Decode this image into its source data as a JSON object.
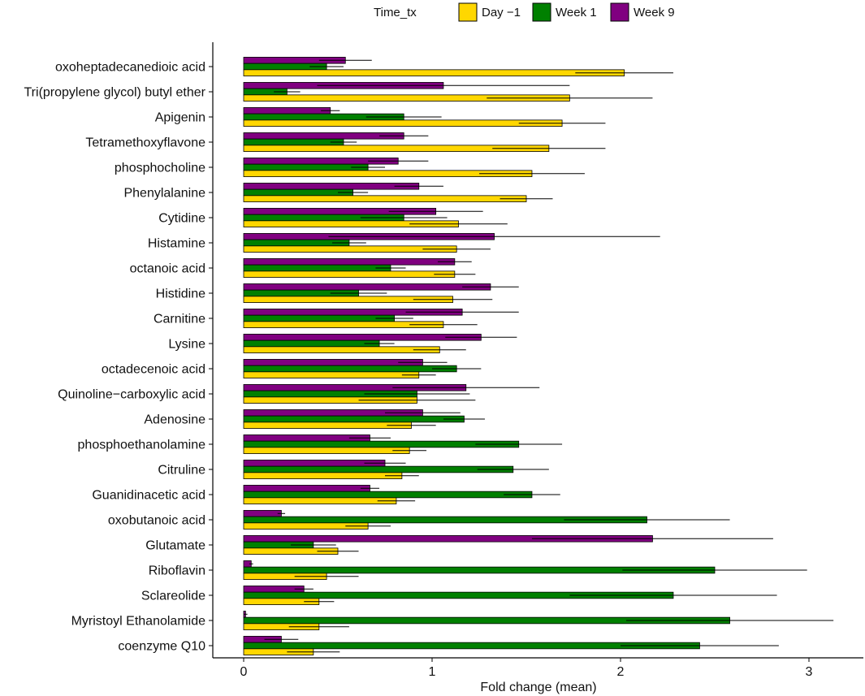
{
  "chart_data": {
    "type": "bar",
    "orientation": "horizontal",
    "title": "",
    "xlabel": "Fold change (mean)",
    "ylabel": "",
    "xlim": [
      -0.12,
      3.28
    ],
    "xticks": [
      0,
      1,
      2,
      3
    ],
    "grid": false,
    "legend": {
      "title": "Time_tx",
      "position": "top",
      "entries": [
        "Day −1",
        "Week 1",
        "Week 9"
      ]
    },
    "colors": {
      "Day −1": "#ffd700",
      "Week 1": "#008000",
      "Week 9": "#800080"
    },
    "categories": [
      "oxoheptadecanedioic acid",
      "Tri(propylene glycol) butyl ether",
      "Apigenin",
      "Tetramethoxyflavone",
      "phosphocholine",
      "Phenylalanine",
      "Cytidine",
      "Histamine",
      "octanoic acid",
      "Histidine",
      "Carnitine",
      "Lysine",
      "octadecenoic acid",
      "Quinoline−carboxylic acid",
      "Adenosine",
      "phosphoethanolamine",
      "Citruline",
      "Guanidinacetic acid",
      "oxobutanoic acid",
      "Glutamate",
      "Riboflavin",
      "Sclareolide",
      "Myristoyl Ethanolamide",
      "coenzyme Q10"
    ],
    "series": [
      {
        "name": "Week 9",
        "values": [
          0.54,
          1.06,
          0.46,
          0.85,
          0.82,
          0.93,
          1.02,
          1.33,
          1.12,
          1.31,
          1.16,
          1.26,
          0.95,
          1.18,
          0.95,
          0.67,
          0.75,
          0.67,
          0.2,
          2.17,
          0.04,
          0.32,
          0.01,
          0.2
        ],
        "errors": [
          0.14,
          0.67,
          0.05,
          0.13,
          0.16,
          0.13,
          0.25,
          0.88,
          0.09,
          0.15,
          0.3,
          0.19,
          0.13,
          0.39,
          0.2,
          0.11,
          0.11,
          0.05,
          0.02,
          0.64,
          0.01,
          0.05,
          0.01,
          0.09
        ]
      },
      {
        "name": "Week 1",
        "values": [
          0.44,
          0.23,
          0.85,
          0.53,
          0.66,
          0.58,
          0.85,
          0.56,
          0.78,
          0.61,
          0.8,
          0.72,
          1.13,
          0.92,
          1.17,
          1.46,
          1.43,
          1.53,
          2.14,
          0.37,
          2.5,
          2.28,
          2.58,
          2.42
        ],
        "errors": [
          0.09,
          0.07,
          0.2,
          0.07,
          0.09,
          0.08,
          0.23,
          0.09,
          0.08,
          0.15,
          0.1,
          0.08,
          0.13,
          0.28,
          0.11,
          0.23,
          0.19,
          0.15,
          0.44,
          0.12,
          0.49,
          0.55,
          0.55,
          0.42
        ]
      },
      {
        "name": "Day −1",
        "values": [
          2.02,
          1.73,
          1.69,
          1.62,
          1.53,
          1.5,
          1.14,
          1.13,
          1.12,
          1.11,
          1.06,
          1.04,
          0.93,
          0.92,
          0.89,
          0.88,
          0.84,
          0.81,
          0.66,
          0.5,
          0.44,
          0.4,
          0.4,
          0.37
        ],
        "errors": [
          0.26,
          0.44,
          0.23,
          0.3,
          0.28,
          0.14,
          0.26,
          0.18,
          0.11,
          0.21,
          0.18,
          0.14,
          0.09,
          0.31,
          0.13,
          0.09,
          0.09,
          0.1,
          0.12,
          0.11,
          0.17,
          0.08,
          0.16,
          0.14
        ]
      }
    ]
  }
}
